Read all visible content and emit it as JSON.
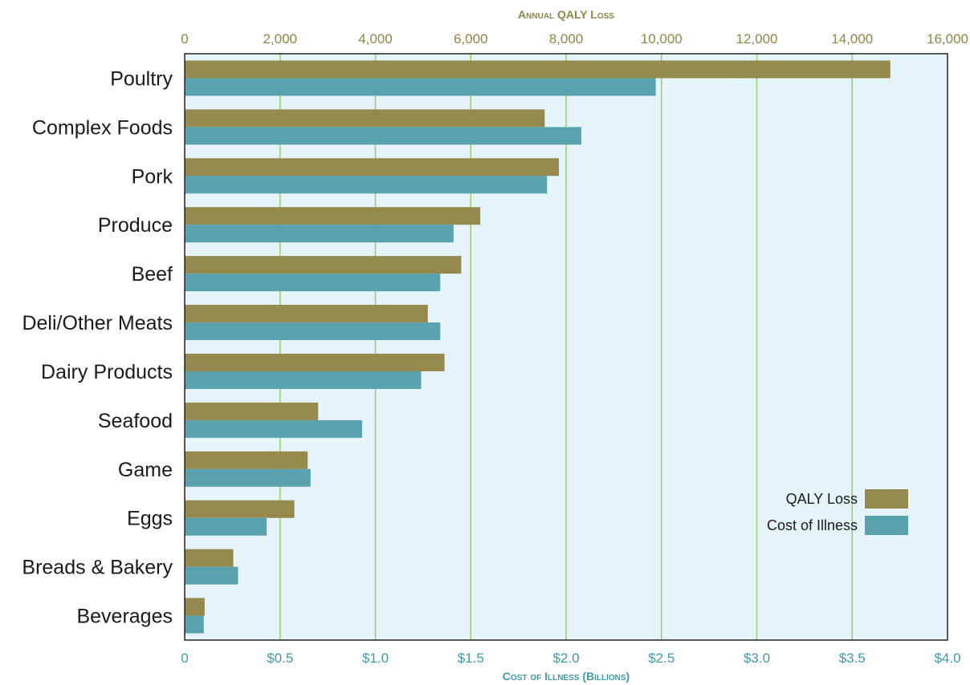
{
  "chart_data": {
    "type": "bar",
    "orientation": "horizontal",
    "categories": [
      "Poultry",
      "Complex Foods",
      "Pork",
      "Produce",
      "Beef",
      "Deli/Other Meats",
      "Dairy Products",
      "Seafood",
      "Game",
      "Eggs",
      "Breads & Bakery",
      "Beverages"
    ],
    "series": [
      {
        "name": "QALY Loss",
        "axis": "top",
        "color": "#96894e",
        "values": [
          14800,
          7550,
          7850,
          6200,
          5800,
          5100,
          5450,
          2800,
          2580,
          2300,
          1020,
          420
        ]
      },
      {
        "name": "Cost of Illness",
        "axis": "bottom",
        "color": "#5aa3ae",
        "values": [
          2.47,
          2.08,
          1.9,
          1.41,
          1.34,
          1.34,
          1.24,
          0.93,
          0.66,
          0.43,
          0.28,
          0.1
        ]
      }
    ],
    "top_axis": {
      "title": "Annual QALY Loss",
      "range": [
        0,
        16000
      ],
      "ticks": [
        0,
        2000,
        4000,
        6000,
        8000,
        10000,
        12000,
        14000,
        16000
      ],
      "tick_labels": [
        "0",
        "2,000",
        "4,000",
        "6,000",
        "8,000",
        "10,000",
        "12,000",
        "14,000",
        "16,000"
      ]
    },
    "bottom_axis": {
      "title": "Cost of Illness (Billions)",
      "range": [
        0,
        4.0
      ],
      "ticks": [
        0,
        0.5,
        1.0,
        1.5,
        2.0,
        2.5,
        3.0,
        3.5,
        4.0
      ],
      "tick_labels": [
        "0",
        "$0.5",
        "$1.0",
        "$1.5",
        "$2.0",
        "$2.5",
        "$3.0",
        "$3.5",
        "$4.0"
      ]
    },
    "legend": {
      "position": "right",
      "entries": [
        "QALY Loss",
        "Cost of Illness"
      ]
    },
    "grid": "vertical",
    "colors": {
      "plot_background": "#e5f4fa",
      "grid": "#9fcb6a",
      "qaly_text": "#8b874a",
      "cost_text": "#3f9aa3"
    }
  }
}
